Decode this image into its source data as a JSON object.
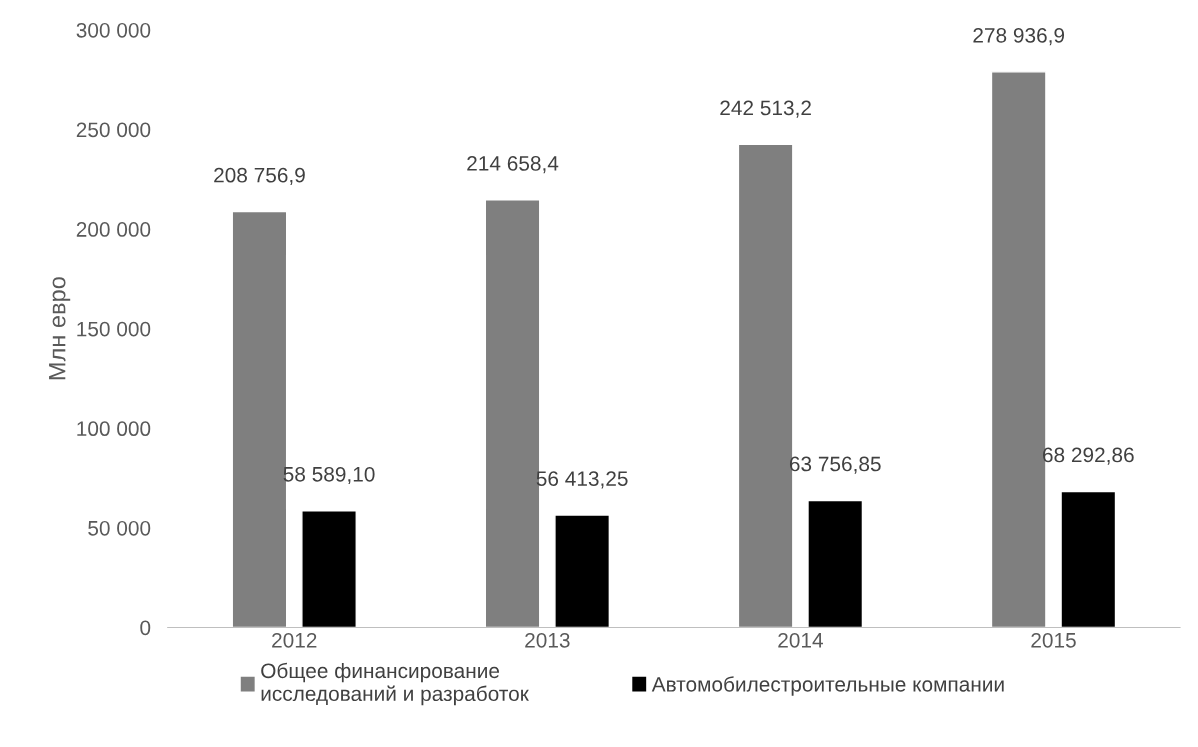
{
  "chart_data": {
    "type": "bar",
    "ylabel": "Млн евро",
    "categories": [
      "2012",
      "2013",
      "2014",
      "2015"
    ],
    "series": [
      {
        "name": "Общее финансирование\nисследований и разработок",
        "color": "#7f7f7f",
        "values": [
          208756.9,
          214658.4,
          242513.2,
          278936.9
        ],
        "value_labels": [
          "208 756,9",
          "214 658,4",
          "242 513,2",
          "278 936,9"
        ]
      },
      {
        "name": "Автомобилестроительные компании",
        "color": "#000000",
        "values": [
          58589.1,
          56413.25,
          63756.85,
          68292.86
        ],
        "value_labels": [
          "58 589,10",
          "56 413,25",
          "63 756,85",
          "68 292,86"
        ]
      }
    ],
    "ylim": [
      0,
      300000
    ],
    "yticks": [
      {
        "value": 0,
        "label": "0"
      },
      {
        "value": 50000,
        "label": "50 000"
      },
      {
        "value": 100000,
        "label": "100 000"
      },
      {
        "value": 150000,
        "label": "150 000"
      },
      {
        "value": 200000,
        "label": "200 000"
      },
      {
        "value": 250000,
        "label": "250 000"
      },
      {
        "value": 300000,
        "label": "300 000"
      }
    ],
    "grid": false,
    "legend": "bottom"
  }
}
